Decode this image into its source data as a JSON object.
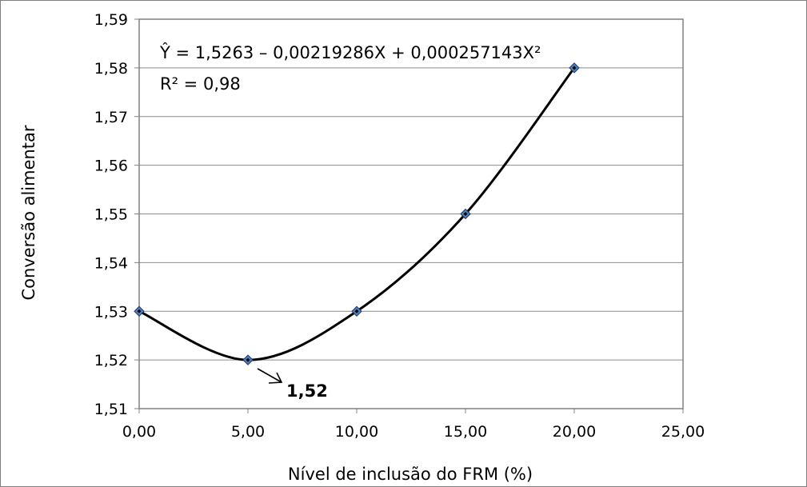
{
  "chart_data": {
    "type": "scatter",
    "title": "",
    "xlabel": "Nível de inclusão do FRM (%)",
    "ylabel": "Conversão alimentar",
    "xlim": [
      0,
      25
    ],
    "ylim": [
      1.51,
      1.59
    ],
    "x_ticks": [
      "0,00",
      "5,00",
      "10,00",
      "15,00",
      "20,00",
      "25,00"
    ],
    "y_ticks": [
      "1,51",
      "1,52",
      "1,53",
      "1,54",
      "1,55",
      "1,56",
      "1,57",
      "1,58",
      "1,59"
    ],
    "grid": "horizontal",
    "series": [
      {
        "x": [
          0,
          5,
          10,
          15,
          20
        ],
        "y": [
          1.53,
          1.52,
          1.53,
          1.55,
          1.58
        ],
        "marker": "diamond",
        "line": "smoothed",
        "marker_color": "#4f81bd",
        "line_color": "#000000"
      }
    ],
    "annotations": {
      "equation": "Ŷ = 1,5263 – 0,00219286X + 0,000257143X²",
      "r_squared": "R² = 0,98",
      "minimum_label": "1,52"
    }
  }
}
